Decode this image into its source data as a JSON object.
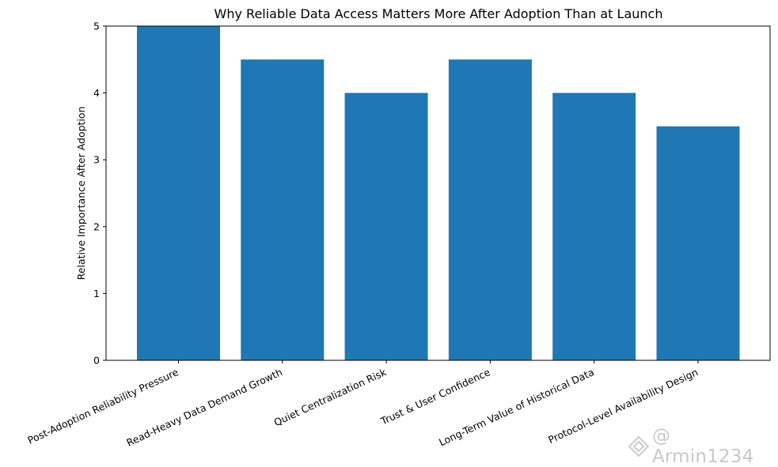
{
  "chart_data": {
    "type": "bar",
    "title": "Why Reliable Data Access Matters More After Adoption Than at Launch",
    "xlabel": "",
    "ylabel": "Relative Importance After Adoption",
    "categories": [
      "Post-Adoption Reliability Pressure",
      "Read-Heavy Data Demand Growth",
      "Quiet Centralization Risk",
      "Trust & User Confidence",
      "Long-Term Value of Historical Data",
      "Protocol-Level Availability Design"
    ],
    "values": [
      5,
      4.5,
      4,
      4.5,
      4,
      3.5
    ],
    "ylim": [
      0,
      5
    ],
    "yticks": [
      "0",
      "1",
      "2",
      "3",
      "4",
      "5"
    ],
    "grid": false,
    "bar_color": "#1f77b4"
  },
  "watermark": {
    "text": "@ Armin1234",
    "icon": "platform-logo-icon",
    "color": "#c8c8c8"
  }
}
